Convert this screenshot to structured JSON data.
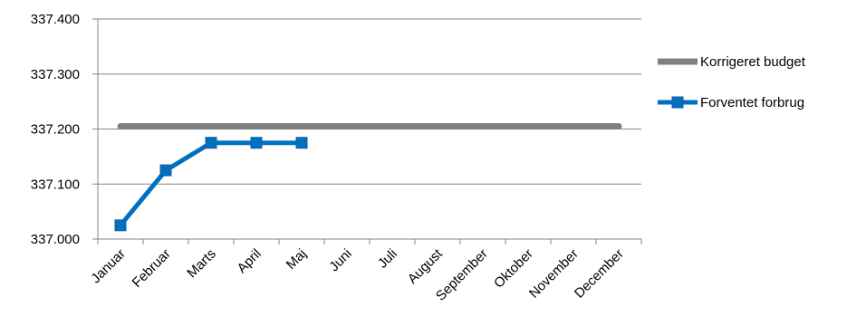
{
  "chart_data": {
    "type": "line",
    "categories": [
      "Januar",
      "Februar",
      "Marts",
      "April",
      "Maj",
      "Juni",
      "Juli",
      "August",
      "September",
      "Oktober",
      "November",
      "December"
    ],
    "ylim": [
      337000,
      337400
    ],
    "yticks": [
      337000,
      337100,
      337200,
      337300,
      337400
    ],
    "ytick_labels": [
      "337.000",
      "337.100",
      "337.200",
      "337.300",
      "337.400"
    ],
    "grid": "horizontal",
    "legend_position": "right",
    "series": [
      {
        "name": "Korrigeret budget",
        "color": "#808080",
        "marker": "none",
        "values": [
          337205,
          337205,
          337205,
          337205,
          337205,
          337205,
          337205,
          337205,
          337205,
          337205,
          337205,
          337205
        ]
      },
      {
        "name": "Forventet forbrug",
        "color": "#0070C0",
        "marker": "square",
        "values": [
          337025,
          337125,
          337175,
          337175,
          337175,
          null,
          null,
          null,
          null,
          null,
          null,
          null
        ]
      }
    ]
  }
}
